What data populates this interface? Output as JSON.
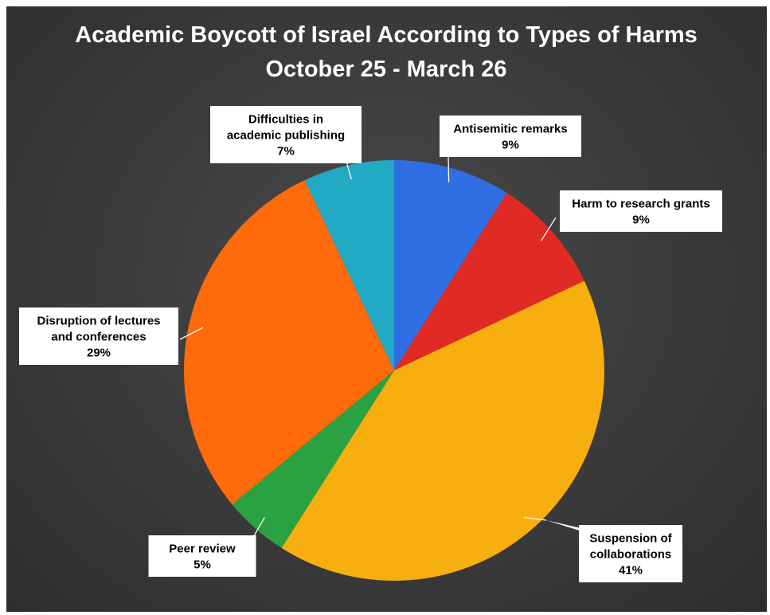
{
  "chart_data": {
    "type": "pie",
    "title": "Academic Boycott of Israel According to Types of Harms",
    "subtitle": "October 25 - March 26",
    "slices": [
      {
        "label_lines": [
          "Antisemitic remarks"
        ],
        "value": 9,
        "value_label": "9%",
        "color": "#2f6fe3"
      },
      {
        "label_lines": [
          "Harm to research grants"
        ],
        "value": 9,
        "value_label": "9%",
        "color": "#e02b24"
      },
      {
        "label_lines": [
          "Suspension of",
          "collaborations"
        ],
        "value": 41,
        "value_label": "41%",
        "color": "#f7ae0f"
      },
      {
        "label_lines": [
          "Peer review"
        ],
        "value": 5,
        "value_label": "5%",
        "color": "#2aa241"
      },
      {
        "label_lines": [
          "Disruption of lectures",
          "and conferences"
        ],
        "value": 29,
        "value_label": "29%",
        "color": "#ff6a0a"
      },
      {
        "label_lines": [
          "Difficulties in",
          "academic publishing"
        ],
        "value": 7,
        "value_label": "7%",
        "color": "#22a9c4"
      }
    ],
    "start_angle_deg": 0,
    "direction": "clockwise",
    "legend": "none",
    "data_labels": "callout"
  }
}
